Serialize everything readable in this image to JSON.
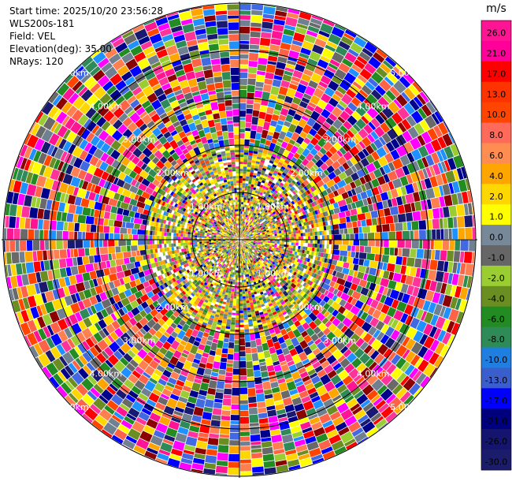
{
  "chart_data": {
    "type": "heatmap",
    "projection": "polar-ppi",
    "header_lines": [
      "Start time: 2025/10/20 23:56:28",
      "WLS200s-181",
      "Field: VEL",
      "Elevation(deg): 35.00",
      "NRays: 120"
    ],
    "range_rings": [
      1,
      2,
      3,
      4,
      5
    ],
    "range_ring_labels": [
      "1.00km",
      "2.00km",
      "3.00km",
      "4.00km",
      "5.00km"
    ],
    "n_rays": 120,
    "colorbar": {
      "unit": "m/s",
      "ticks": [
        "26.0",
        "21.0",
        "17.0",
        "13.0",
        "10.0",
        "8.0",
        "6.0",
        "4.0",
        "2.0",
        "1.0",
        "0.0",
        "-1.0",
        "-2.0",
        "-4.0",
        "-6.0",
        "-8.0",
        "-10.0",
        "-13.0",
        "-17.0",
        "-21.0",
        "-26.0",
        "-30.0"
      ],
      "colors": [
        "#ff1493",
        "#ff3399",
        "#ff0000",
        "#ff2222",
        "#ff4500",
        "#ff6347",
        "#ff7f50",
        "#ffa500",
        "#ffd700",
        "#ffff00",
        "#708090",
        "#696969",
        "#9acd32",
        "#6b8e23",
        "#228b22",
        "#2e8b57",
        "#1e90ff",
        "#4169e1",
        "#0000ff",
        "#00008b",
        "#191970",
        "#1a1a6e"
      ]
    }
  }
}
